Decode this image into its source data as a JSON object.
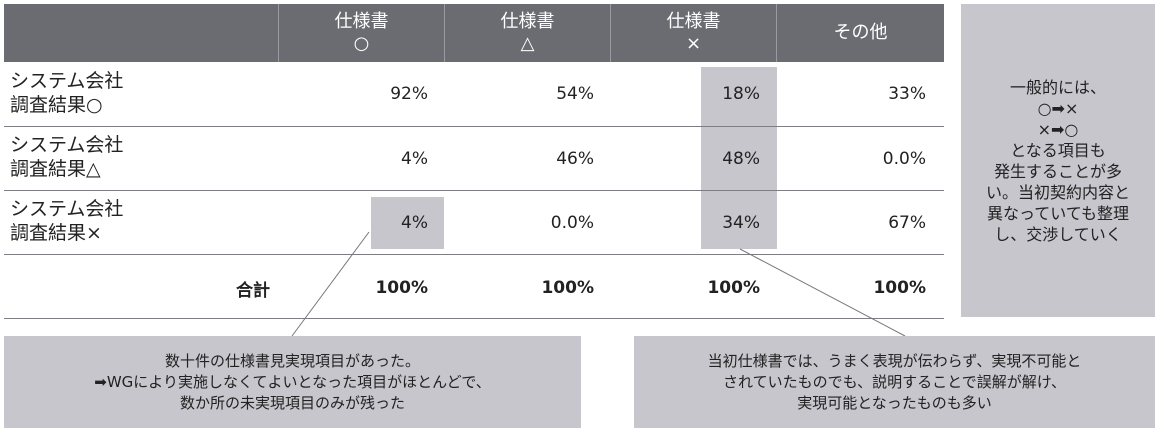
{
  "header": {
    "columns": [
      {
        "line1": "仕様書",
        "line2": "○"
      },
      {
        "line1": "仕様書",
        "line2": "△"
      },
      {
        "line1": "仕様書",
        "line2": "×"
      },
      {
        "line1": "その他",
        "line2": ""
      }
    ]
  },
  "rows": [
    {
      "label1": "システム会社",
      "label2": "調査結果○",
      "values": [
        "92%",
        "54%",
        "18%",
        "33%"
      ]
    },
    {
      "label1": "システム会社",
      "label2": "調査結果△",
      "values": [
        "4%",
        "46%",
        "48%",
        "0.0%"
      ]
    },
    {
      "label1": "システム会社",
      "label2": "調査結果×",
      "values": [
        "4%",
        "0.0%",
        "34%",
        "67%"
      ]
    }
  ],
  "total": {
    "label": "合計",
    "values": [
      "100%",
      "100%",
      "100%",
      "100%"
    ]
  },
  "side_note": {
    "lines": [
      "一般的には、",
      "○➡×",
      "×➡○",
      "となる項目も",
      "発生することが多",
      "い。当初契約内容と",
      "異なっていても整理",
      "し、交渉していく"
    ]
  },
  "note_left": {
    "lines": [
      "数十件の仕様書見実現項目があった。",
      "➡WGにより実施しなくてよいとなった項目がほとんどで、",
      "数か所の未実現項目のみが残った"
    ]
  },
  "note_right": {
    "lines": [
      "当初仕様書では、うまく表現が伝わらず、実現不可能と",
      "されていたものでも、説明することで誤解が解け、",
      "実現可能となったものも多い"
    ]
  }
}
